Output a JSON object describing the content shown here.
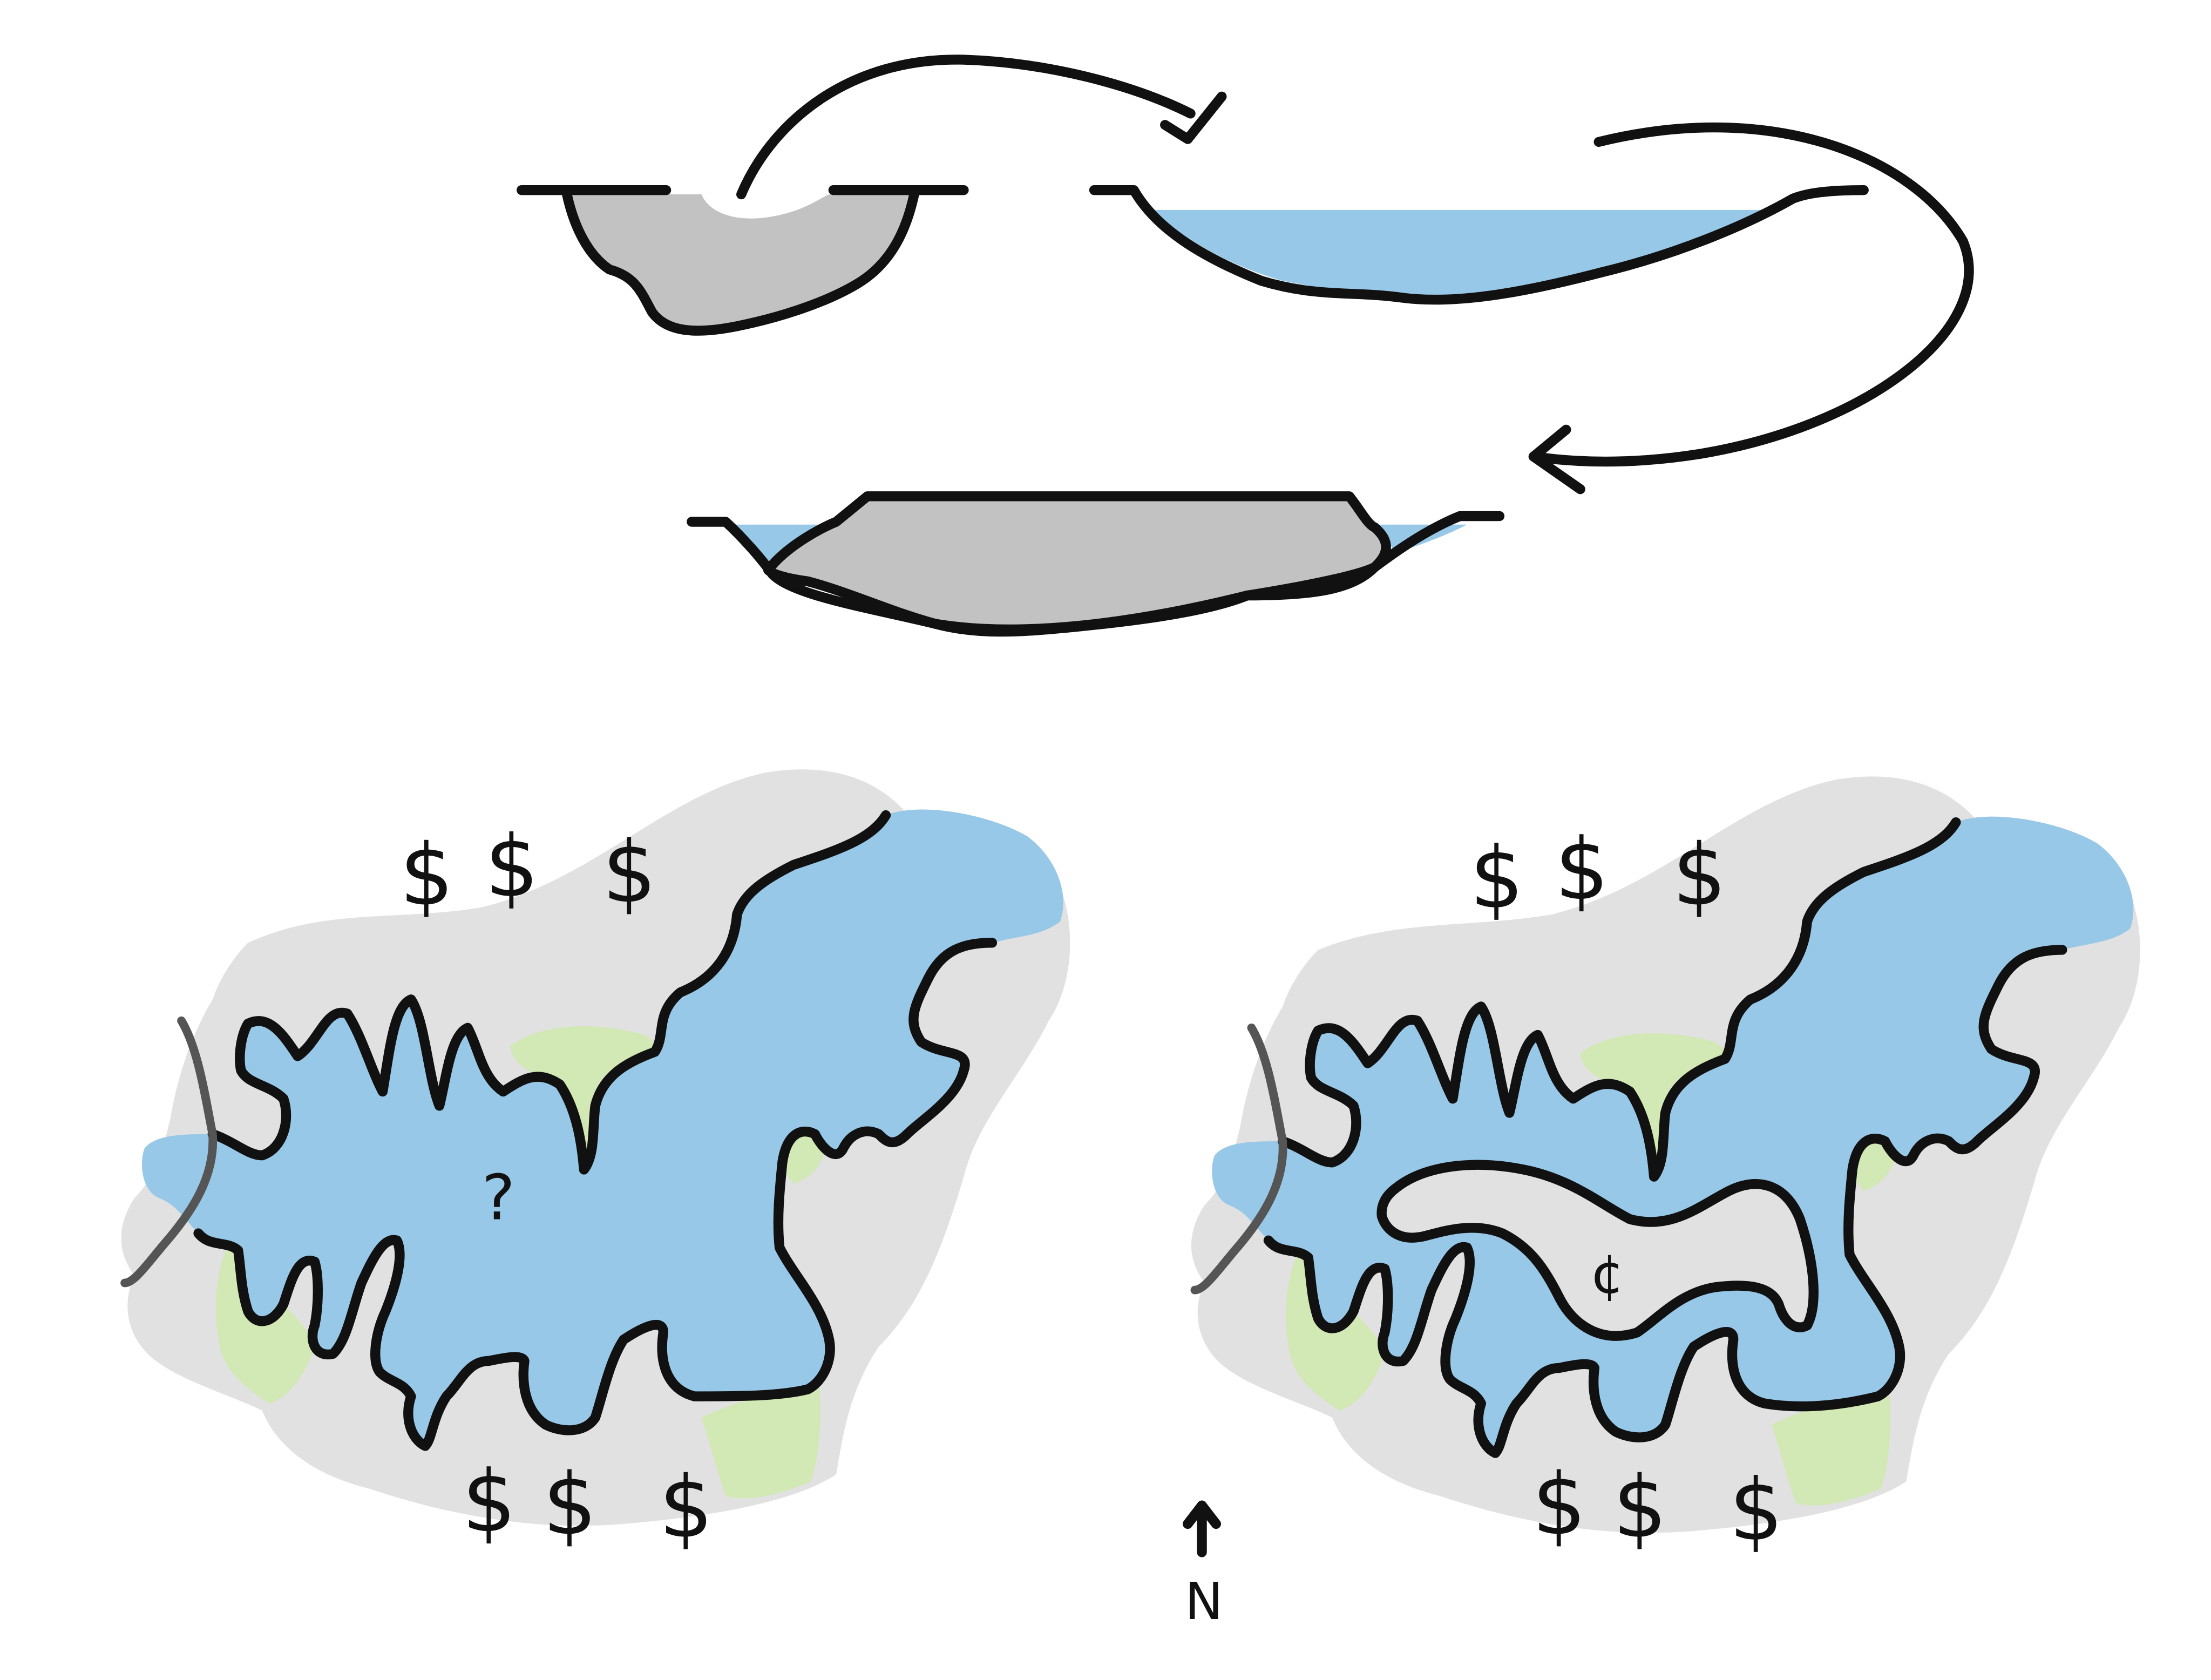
{
  "colors": {
    "water": "#97C8E8",
    "dredge": "#C2C2C2",
    "land": "#E1E1E1",
    "green": "#D2E8B5",
    "ink": "#111111",
    "road": "#555555"
  },
  "top_panel": {
    "step1": "dredged sediment cross-section",
    "step2": "lake basin cross-section",
    "step3": "raised island cross-section",
    "check_icon": "checkmark-icon"
  },
  "maps": {
    "left": {
      "question_mark": "?",
      "north_marks": [
        "$",
        "$",
        "$"
      ],
      "south_marks": [
        "$",
        "$",
        "$"
      ]
    },
    "right": {
      "cent_mark": "¢",
      "north_marks": [
        "$",
        "$",
        "$"
      ],
      "south_marks": [
        "$",
        "$",
        "$"
      ]
    }
  },
  "north_arrow": {
    "label": "N",
    "icon": "arrow-up-icon"
  }
}
